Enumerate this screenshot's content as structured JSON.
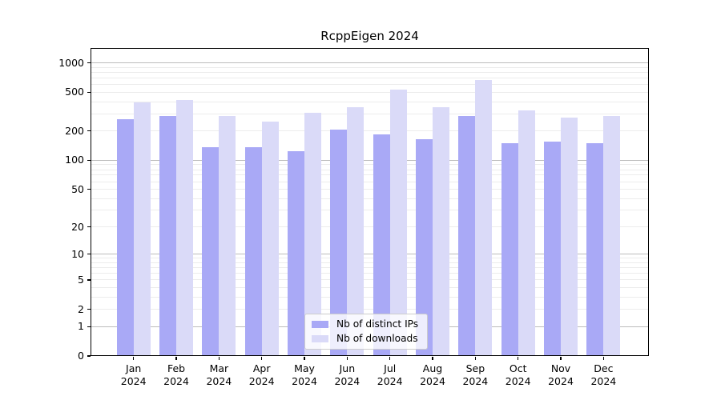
{
  "chart_data": {
    "type": "bar",
    "title": "RcppEigen 2024",
    "scale": "log1p",
    "categories": [
      "Jan",
      "Feb",
      "Mar",
      "Apr",
      "May",
      "Jun",
      "Jul",
      "Aug",
      "Sep",
      "Oct",
      "Nov",
      "Dec"
    ],
    "x_tick_second_line": "2024",
    "series": [
      {
        "name": "Nb of distinct IPs",
        "color": "#a9a9f6",
        "values": [
          265,
          285,
          137,
          137,
          123,
          207,
          186,
          165,
          285,
          151,
          156,
          149
        ]
      },
      {
        "name": "Nb of downloads",
        "color": "#dadaf8",
        "values": [
          395,
          415,
          285,
          250,
          310,
          352,
          535,
          355,
          675,
          328,
          277,
          285
        ]
      }
    ],
    "yticks": [
      0,
      1,
      2,
      5,
      10,
      20,
      50,
      100,
      200,
      500,
      1000
    ],
    "ylim": [
      0,
      1423
    ],
    "grid": {
      "major_values": [
        1,
        10,
        100,
        1000
      ],
      "minor_values": [
        2,
        3,
        4,
        5,
        6,
        7,
        8,
        9,
        20,
        30,
        40,
        50,
        60,
        70,
        80,
        90,
        200,
        300,
        400,
        500,
        600,
        700,
        800,
        900
      ],
      "major_color": "#bbbbbb",
      "minor_color": "#ececec"
    },
    "axis_color": "#000000",
    "legend": {
      "position": "lower center"
    }
  }
}
